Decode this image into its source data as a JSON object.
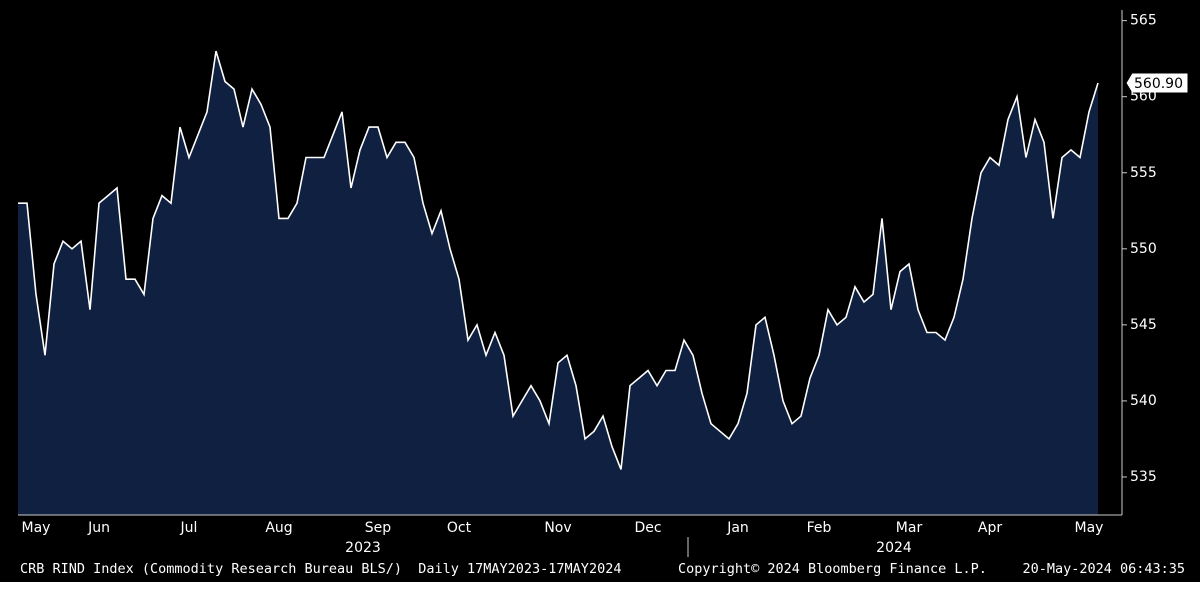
{
  "chart_data": {
    "type": "area",
    "categories": [
      null,
      null,
      "May",
      null,
      null,
      null,
      null,
      null,
      null,
      "Jun",
      null,
      null,
      null,
      null,
      null,
      null,
      null,
      null,
      null,
      "Jul",
      null,
      null,
      null,
      null,
      null,
      null,
      null,
      null,
      null,
      "Aug",
      null,
      null,
      null,
      null,
      null,
      null,
      null,
      null,
      null,
      null,
      "Sep",
      null,
      null,
      null,
      null,
      null,
      null,
      null,
      null,
      "Oct",
      null,
      null,
      null,
      null,
      null,
      null,
      null,
      null,
      null,
      null,
      "Nov",
      null,
      null,
      null,
      null,
      null,
      null,
      null,
      null,
      null,
      "Dec",
      null,
      null,
      null,
      null,
      null,
      null,
      null,
      null,
      null,
      "Jan",
      null,
      null,
      null,
      null,
      null,
      null,
      null,
      null,
      "Feb",
      null,
      null,
      null,
      null,
      null,
      null,
      null,
      null,
      null,
      "Mar",
      null,
      null,
      null,
      null,
      null,
      null,
      null,
      null,
      "Apr",
      null,
      null,
      null,
      null,
      null,
      null,
      null,
      null,
      null,
      null,
      "May",
      null
    ],
    "series": [
      {
        "name": "CRB RIND Index",
        "color": "#ffffff",
        "fill": "#0f2040",
        "values": [
          553,
          553,
          547,
          543,
          549,
          550.5,
          550,
          550.5,
          546,
          553,
          553.5,
          554,
          548,
          548,
          547,
          552,
          553.5,
          553,
          558,
          556,
          557.5,
          559,
          563,
          561,
          560.5,
          558,
          560.5,
          559.5,
          558,
          552,
          552,
          553,
          556,
          556,
          556,
          557.5,
          559,
          554,
          556.5,
          558,
          558,
          556,
          557,
          557,
          556,
          553,
          551,
          552.5,
          550,
          548,
          544,
          545,
          543,
          544.5,
          543,
          539,
          540,
          541,
          540,
          538.5,
          542.5,
          543,
          541,
          537.5,
          538,
          539,
          537,
          535.5,
          541,
          541.5,
          542,
          541,
          542,
          542,
          544,
          543,
          540.5,
          538.5,
          538,
          537.5,
          538.5,
          540.5,
          545,
          545.5,
          543,
          540,
          538.5,
          539,
          541.5,
          543,
          546,
          545,
          545.5,
          547.5,
          546.5,
          547,
          552,
          546,
          548.5,
          549,
          546,
          544.5,
          544.5,
          544,
          545.5,
          548,
          552,
          555,
          556,
          555.5,
          558.5,
          560,
          556,
          558.5,
          557,
          552,
          556,
          556.5,
          556,
          559,
          560.9
        ],
        "value_labels": [
          null,
          null,
          null,
          null,
          null,
          null,
          null,
          null,
          null,
          null,
          null,
          null,
          null,
          null,
          null,
          null,
          null,
          null,
          null,
          null,
          null,
          null,
          null,
          null,
          null,
          null,
          null,
          null,
          null,
          null,
          null,
          null,
          null,
          null,
          null,
          null,
          null,
          null,
          null,
          null,
          null,
          null,
          null,
          null,
          null,
          null,
          null,
          null,
          null,
          null,
          null,
          null,
          null,
          null,
          null,
          null,
          null,
          null,
          null,
          null,
          null,
          null,
          null,
          null,
          null,
          null,
          null,
          null,
          null,
          null,
          null,
          null,
          null,
          null,
          null,
          null,
          null,
          null,
          null,
          null,
          null,
          null,
          null,
          null,
          null,
          null,
          null,
          null,
          null,
          null,
          null,
          null,
          null,
          null,
          null,
          null,
          null,
          null,
          null,
          null,
          null,
          null,
          null,
          null,
          null,
          null,
          null,
          null,
          null,
          null,
          null,
          null,
          null,
          null,
          null,
          null,
          null,
          null,
          null,
          null,
          "560.90"
        ]
      }
    ],
    "ylim": [
      532.5,
      565.7
    ],
    "yticks": [
      535,
      540,
      545,
      550,
      555,
      560,
      565
    ],
    "years": [
      {
        "label": "2023",
        "at": 40
      },
      {
        "label": "2024",
        "at": 99
      }
    ],
    "footer": {
      "description": "CRB RIND Index (Commodity Research Bureau BLS/)  Daily 17MAY2023-17MAY2024",
      "copyright": "Copyright© 2024 Bloomberg Finance L.P.",
      "timestamp": "20-May-2024 06:43:35"
    }
  }
}
